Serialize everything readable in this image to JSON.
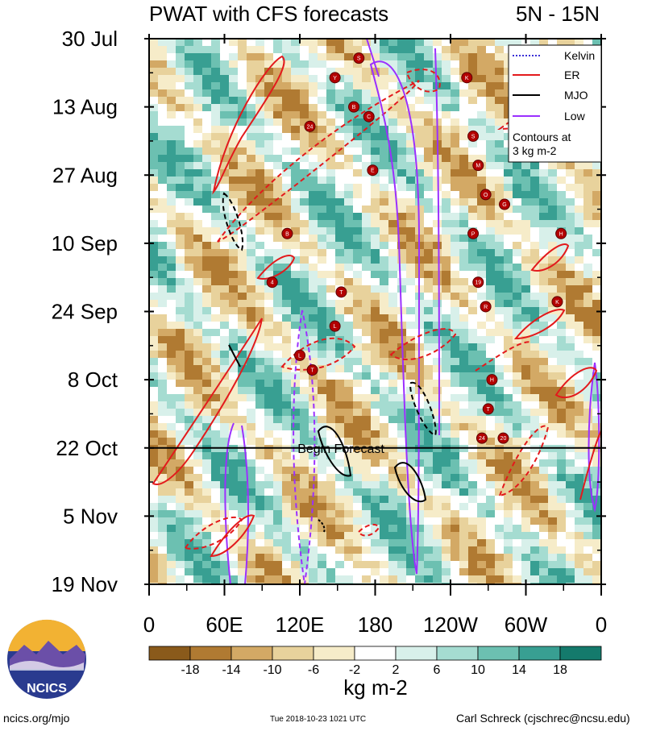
{
  "chart_data": {
    "type": "heatmap",
    "title_left": "PWAT with CFS forecasts",
    "title_right": "5N - 15N",
    "x_tick_labels": [
      "0",
      "60E",
      "120E",
      "180",
      "120W",
      "60W",
      "0"
    ],
    "x_tick_lon": [
      0,
      60,
      120,
      180,
      240,
      300,
      360
    ],
    "y_tick_labels": [
      "30 Jul",
      "13 Aug",
      "27 Aug",
      "10 Sep",
      "24 Sep",
      "8 Oct",
      "22 Oct",
      "5 Nov",
      "19 Nov"
    ],
    "y_tick_day": [
      0,
      14,
      28,
      42,
      56,
      70,
      84,
      98,
      112
    ],
    "forecast_start_day": 84,
    "forecast_label": "Begin Forecast",
    "legend": {
      "items": [
        {
          "label": "Kelvin",
          "color": "#3b2fd6",
          "style": "dotted"
        },
        {
          "label": "ER",
          "color": "#e31a1c",
          "style": "solid"
        },
        {
          "label": "MJO",
          "color": "#000000",
          "style": "solid"
        },
        {
          "label": "Low",
          "color": "#9b30ff",
          "style": "solid"
        }
      ],
      "note_line1": "Contours at",
      "note_line2": "3 kg m-2"
    },
    "colorbar": {
      "unit_label": "kg m-2",
      "tick_labels": [
        "-18",
        "-14",
        "-10",
        "-6",
        "-2",
        "2",
        "6",
        "10",
        "14",
        "18"
      ],
      "colors": [
        "#5a3a0e",
        "#8a5a1b",
        "#b07a32",
        "#d3a965",
        "#e8d29c",
        "#f6ecc9",
        "#ffffff",
        "#d8f0ea",
        "#a5dcd1",
        "#6cc0b1",
        "#389f92",
        "#147a6c",
        "#0b5247"
      ]
    },
    "storm_markers": [
      {
        "lon": 167,
        "day": 4,
        "id": "S"
      },
      {
        "lon": 148,
        "day": 8,
        "id": "Y"
      },
      {
        "lon": 163,
        "day": 14,
        "id": "B"
      },
      {
        "lon": 175,
        "day": 16,
        "id": "C"
      },
      {
        "lon": 128,
        "day": 18,
        "id": "24"
      },
      {
        "lon": 178,
        "day": 27,
        "id": "E"
      },
      {
        "lon": 110,
        "day": 40,
        "id": "B"
      },
      {
        "lon": 98,
        "day": 50,
        "id": "4"
      },
      {
        "lon": 153,
        "day": 52,
        "id": "T"
      },
      {
        "lon": 148,
        "day": 59,
        "id": "L"
      },
      {
        "lon": 120,
        "day": 65,
        "id": "L"
      },
      {
        "lon": 130,
        "day": 68,
        "id": "T"
      },
      {
        "lon": 253,
        "day": 8,
        "id": "K"
      },
      {
        "lon": 258,
        "day": 20,
        "id": "S"
      },
      {
        "lon": 262,
        "day": 26,
        "id": "M"
      },
      {
        "lon": 268,
        "day": 32,
        "id": "O"
      },
      {
        "lon": 283,
        "day": 34,
        "id": "G"
      },
      {
        "lon": 258,
        "day": 40,
        "id": "P"
      },
      {
        "lon": 328,
        "day": 40,
        "id": "H"
      },
      {
        "lon": 262,
        "day": 50,
        "id": "19"
      },
      {
        "lon": 268,
        "day": 55,
        "id": "R"
      },
      {
        "lon": 325,
        "day": 54,
        "id": "K"
      },
      {
        "lon": 273,
        "day": 70,
        "id": "H"
      },
      {
        "lon": 270,
        "day": 76,
        "id": "T"
      },
      {
        "lon": 265,
        "day": 82,
        "id": "24"
      },
      {
        "lon": 282,
        "day": 82,
        "id": "20"
      }
    ]
  },
  "footer": {
    "url": "ncics.org/mjo",
    "timestamp": "Tue 2018-10-23 1021 UTC",
    "author": "Carl Schreck (cjschrec@ncsu.edu)"
  },
  "logo": {
    "text": "NCICS"
  }
}
